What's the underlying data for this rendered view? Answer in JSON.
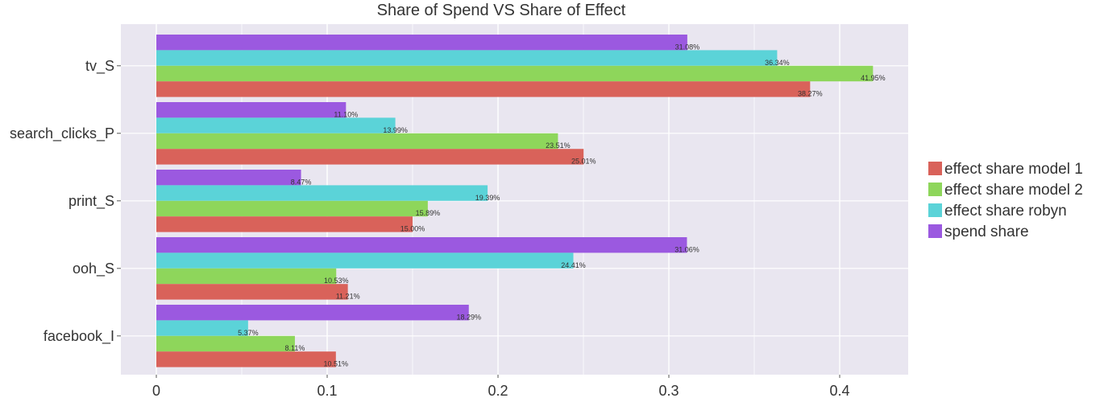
{
  "chart_data": {
    "type": "bar",
    "orientation": "horizontal",
    "title": "Share of Spend VS Share of Effect",
    "xlabel": "",
    "ylabel": "",
    "xlim": [
      -0.1,
      0.405
    ],
    "x_ticks": [
      0,
      0.1,
      0.2,
      0.3,
      0.4
    ],
    "x_tick_labels": [
      "0",
      "0.1",
      "0.2",
      "0.3",
      "0.4"
    ],
    "grid": true,
    "legend_position": "right",
    "categories": [
      "tv_S",
      "search_clicks_P",
      "print_S",
      "ooh_S",
      "facebook_I"
    ],
    "series": [
      {
        "name": "spend share",
        "color": "#9b59e0",
        "values": [
          0.3108,
          0.111,
          0.0847,
          0.3106,
          0.1829
        ],
        "labels": [
          "31.08%",
          "11.10%",
          "8.47%",
          "31.06%",
          "18.29%"
        ]
      },
      {
        "name": "effect share robyn",
        "color": "#5bd3d8",
        "values": [
          0.3634,
          0.1399,
          0.1939,
          0.2441,
          0.0537
        ],
        "labels": [
          "36.34%",
          "13.99%",
          "19.39%",
          "24.41%",
          "5.37%"
        ]
      },
      {
        "name": "effect share model 2",
        "color": "#8ed65b",
        "values": [
          0.4195,
          0.2351,
          0.1589,
          0.1053,
          0.0811
        ],
        "labels": [
          "41.95%",
          "23.51%",
          "15.89%",
          "10.53%",
          "8.11%"
        ]
      },
      {
        "name": "effect share model 1",
        "color": "#d9625a",
        "values": [
          0.3827,
          0.2501,
          0.15,
          0.1121,
          0.1051
        ],
        "labels": [
          "38.27%",
          "25.01%",
          "15.00%",
          "11.21%",
          "10.51%"
        ]
      }
    ],
    "legend_order": [
      "effect share model 1",
      "effect share model 2",
      "effect share robyn",
      "spend share"
    ]
  }
}
